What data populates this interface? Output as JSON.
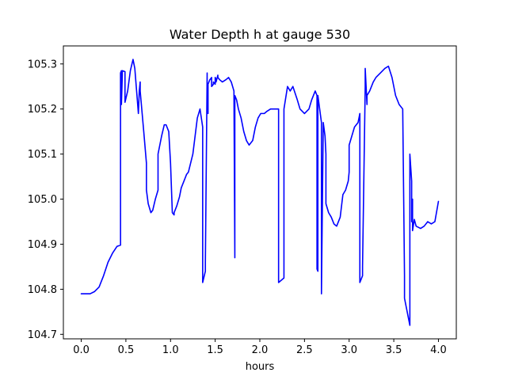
{
  "chart_data": {
    "type": "line",
    "title": "Water Depth h at gauge 530",
    "xlabel": "hours",
    "ylabel": "",
    "xlim": [
      -0.2,
      4.2
    ],
    "ylim": [
      104.69,
      105.34
    ],
    "grid": false,
    "x_ticks": [
      0.0,
      0.5,
      1.0,
      1.5,
      2.0,
      2.5,
      3.0,
      3.5,
      4.0
    ],
    "x_tick_labels": [
      "0.0",
      "0.5",
      "1.0",
      "1.5",
      "2.0",
      "2.5",
      "3.0",
      "3.5",
      "4.0"
    ],
    "y_ticks": [
      104.7,
      104.8,
      104.9,
      105.0,
      105.1,
      105.2,
      105.3
    ],
    "y_tick_labels": [
      "104.7",
      "104.8",
      "104.9",
      "105.0",
      "105.1",
      "105.2",
      "105.3"
    ],
    "series": [
      {
        "color": "#0000ff",
        "x": [
          0.0,
          0.05,
          0.1,
          0.15,
          0.2,
          0.25,
          0.3,
          0.35,
          0.4,
          0.44,
          0.44,
          0.45,
          0.45,
          0.46,
          0.46,
          0.49,
          0.49,
          0.52,
          0.55,
          0.58,
          0.6,
          0.62,
          0.64,
          0.65,
          0.66,
          0.66,
          0.7,
          0.73,
          0.73,
          0.75,
          0.78,
          0.8,
          0.83,
          0.86,
          0.86,
          0.9,
          0.93,
          0.95,
          0.98,
          1.0,
          1.02,
          1.04,
          1.04,
          1.07,
          1.1,
          1.12,
          1.15,
          1.18,
          1.2,
          1.25,
          1.3,
          1.33,
          1.36,
          1.36,
          1.39,
          1.39,
          1.41,
          1.41,
          1.42,
          1.42,
          1.44,
          1.46,
          1.46,
          1.48,
          1.48,
          1.5,
          1.5,
          1.51,
          1.51,
          1.53,
          1.53,
          1.55,
          1.58,
          1.62,
          1.65,
          1.68,
          1.71,
          1.72,
          1.72,
          1.74,
          1.76,
          1.79,
          1.82,
          1.85,
          1.88,
          1.92,
          1.95,
          1.98,
          2.01,
          2.05,
          2.08,
          2.12,
          2.15,
          2.18,
          2.21,
          2.21,
          2.27,
          2.27,
          2.31,
          2.34,
          2.37,
          2.42,
          2.45,
          2.5,
          2.55,
          2.58,
          2.62,
          2.64,
          2.64,
          2.65,
          2.65,
          2.69,
          2.69,
          2.71,
          2.73,
          2.74,
          2.74,
          2.77,
          2.8,
          2.83,
          2.86,
          2.9,
          2.93,
          2.96,
          2.99,
          3.0,
          3.0,
          3.03,
          3.06,
          3.1,
          3.12,
          3.12,
          3.15,
          3.15,
          3.18,
          3.18,
          3.2,
          3.2,
          3.23,
          3.27,
          3.3,
          3.35,
          3.4,
          3.44,
          3.48,
          3.52,
          3.56,
          3.6,
          3.62,
          3.62,
          3.68,
          3.68,
          3.7,
          3.7,
          3.71,
          3.71,
          3.73,
          3.75,
          3.8,
          3.84,
          3.88,
          3.92,
          3.96,
          4.0
        ],
        "values": [
          104.79,
          104.79,
          104.79,
          104.795,
          104.805,
          104.83,
          104.86,
          104.88,
          104.895,
          104.898,
          105.28,
          105.285,
          105.21,
          105.275,
          105.285,
          105.283,
          105.215,
          105.24,
          105.285,
          105.31,
          105.29,
          105.24,
          105.19,
          105.24,
          105.26,
          105.24,
          105.15,
          105.08,
          105.02,
          104.99,
          104.97,
          104.975,
          105.0,
          105.02,
          105.1,
          105.14,
          105.165,
          105.165,
          105.15,
          105.08,
          104.97,
          104.965,
          104.97,
          104.985,
          105.005,
          105.025,
          105.04,
          105.055,
          105.06,
          105.1,
          105.18,
          105.2,
          105.16,
          104.815,
          104.84,
          104.86,
          105.28,
          105.2,
          105.19,
          105.255,
          105.265,
          105.27,
          105.25,
          105.255,
          105.26,
          105.255,
          105.27,
          105.265,
          105.26,
          105.275,
          105.27,
          105.265,
          105.26,
          105.265,
          105.27,
          105.26,
          105.24,
          104.87,
          105.23,
          105.22,
          105.2,
          105.18,
          105.15,
          105.13,
          105.12,
          105.13,
          105.16,
          105.18,
          105.19,
          105.19,
          105.195,
          105.2,
          105.2,
          105.2,
          105.2,
          104.815,
          104.825,
          105.2,
          105.25,
          105.24,
          105.25,
          105.22,
          105.2,
          105.19,
          105.2,
          105.22,
          105.24,
          105.23,
          104.845,
          104.84,
          105.23,
          105.17,
          104.79,
          105.17,
          105.14,
          105.1,
          104.99,
          104.97,
          104.96,
          104.945,
          104.94,
          104.96,
          105.01,
          105.02,
          105.04,
          105.06,
          105.12,
          105.14,
          105.16,
          105.17,
          105.19,
          104.815,
          104.83,
          104.85,
          105.25,
          105.29,
          105.21,
          105.23,
          105.24,
          105.26,
          105.27,
          105.28,
          105.29,
          105.295,
          105.27,
          105.23,
          105.21,
          105.2,
          104.83,
          104.78,
          104.72,
          105.1,
          105.04,
          104.95,
          105.0,
          104.93,
          104.955,
          104.94,
          104.935,
          104.94,
          104.95,
          104.945,
          104.95,
          104.995
        ]
      }
    ]
  }
}
